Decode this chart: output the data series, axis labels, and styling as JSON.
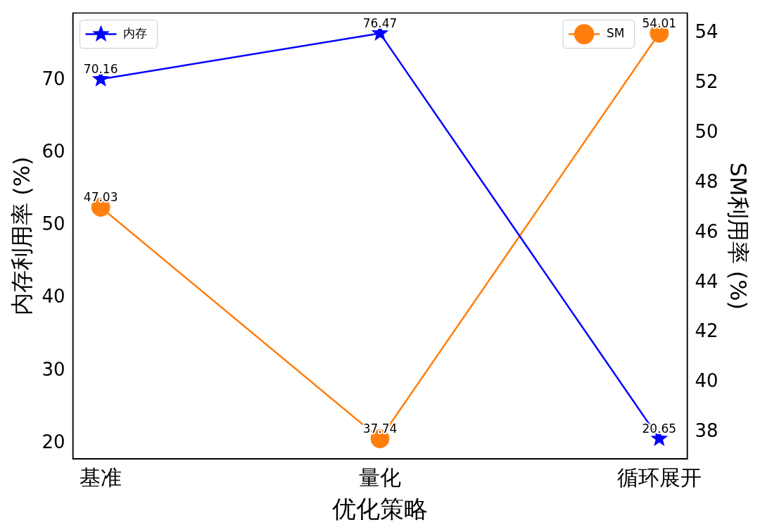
{
  "chart_data": {
    "type": "line",
    "xlabel": "优化策略",
    "ylabel": "内存利用率 (%)",
    "y2label": "SM利用率 (%)",
    "categories": [
      "基准",
      "量化",
      "循环展开"
    ],
    "series": [
      {
        "name": "内存",
        "color": "#0000ff",
        "values": [
          70.16,
          76.47,
          20.65
        ],
        "marker": "star"
      },
      {
        "name": "SM",
        "color": "#ff7f0e",
        "values": [
          47.03,
          37.74,
          54.01
        ],
        "marker": "circle",
        "axis": "y2"
      }
    ],
    "ylim": [
      17.86,
      79.26
    ],
    "yticks": [
      20,
      30,
      40,
      50,
      60,
      70
    ],
    "y2lim": [
      36.93,
      54.82
    ],
    "y2ticks": [
      38,
      40,
      42,
      44,
      46,
      48,
      50,
      52,
      54
    ],
    "data_labels": true,
    "legend": "top",
    "grid": false,
    "line_style": "solid"
  }
}
